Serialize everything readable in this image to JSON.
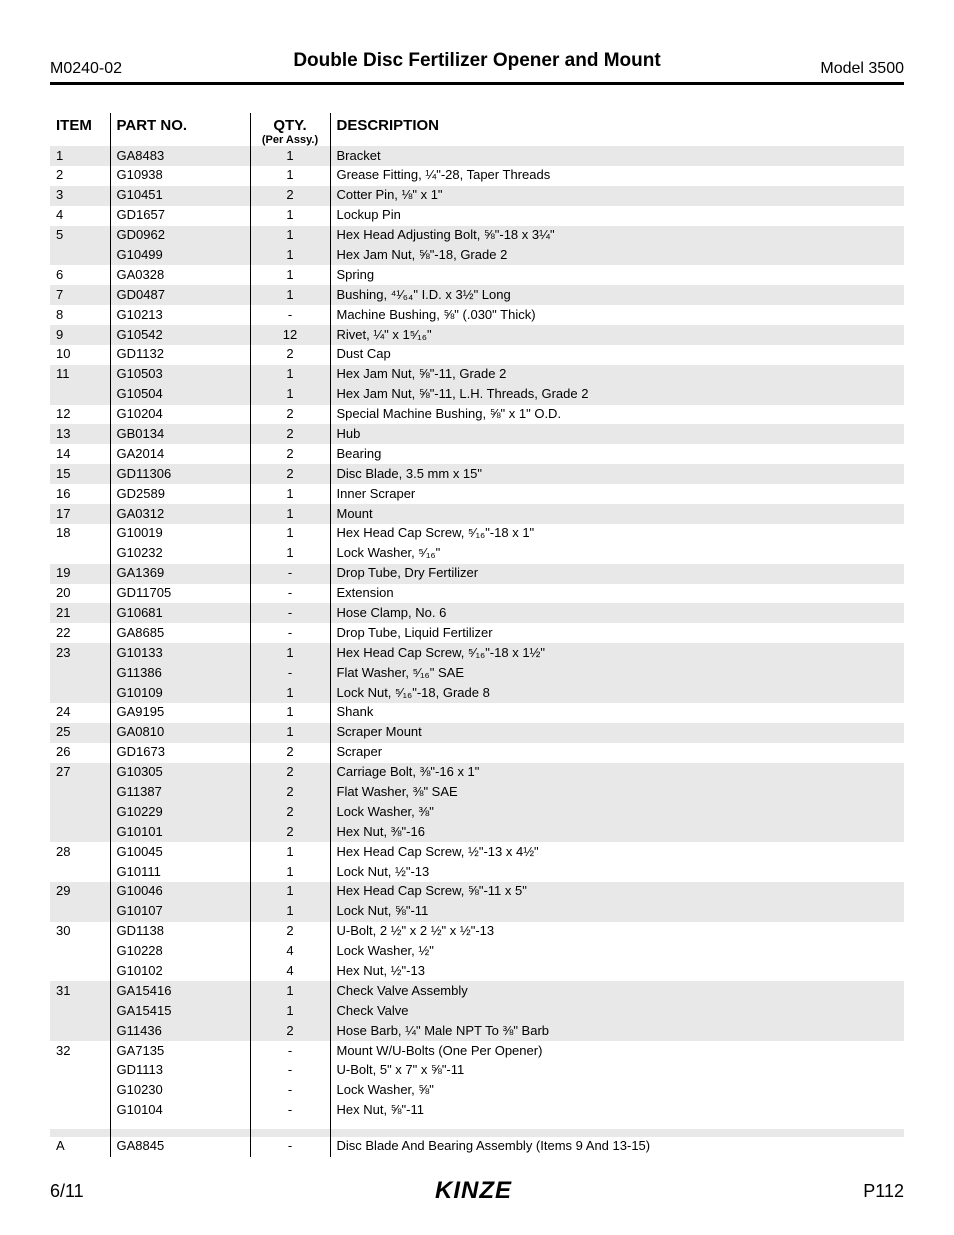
{
  "header": {
    "doc_id": "M0240-02",
    "title": "Double Disc Fertilizer Opener and Mount",
    "model": "Model 3500"
  },
  "columns": {
    "item": "ITEM",
    "part": "PART NO.",
    "qty": "QTY.",
    "qty_sub": "(Per Assy.)",
    "desc": "DESCRIPTION"
  },
  "rows": [
    {
      "item": "1",
      "striped": true,
      "lines": [
        {
          "part": "GA8483",
          "qty": "1",
          "desc": "Bracket"
        }
      ]
    },
    {
      "item": "2",
      "striped": false,
      "lines": [
        {
          "part": "G10938",
          "qty": "1",
          "desc": "Grease Fitting, ¼\"-28, Taper Threads"
        }
      ]
    },
    {
      "item": "3",
      "striped": true,
      "lines": [
        {
          "part": "G10451",
          "qty": "2",
          "desc": "Cotter Pin, ⅛\" x 1\""
        }
      ]
    },
    {
      "item": "4",
      "striped": false,
      "lines": [
        {
          "part": "GD1657",
          "qty": "1",
          "desc": "Lockup Pin"
        }
      ]
    },
    {
      "item": "5",
      "striped": true,
      "lines": [
        {
          "part": "GD0962",
          "qty": "1",
          "desc": "Hex Head Adjusting Bolt, ⅝\"-18 x 3¼\""
        },
        {
          "part": "G10499",
          "qty": "1",
          "desc": "Hex Jam Nut, ⅝\"-18, Grade 2"
        }
      ]
    },
    {
      "item": "6",
      "striped": false,
      "lines": [
        {
          "part": "GA0328",
          "qty": "1",
          "desc": "Spring"
        }
      ]
    },
    {
      "item": "7",
      "striped": true,
      "lines": [
        {
          "part": "GD0487",
          "qty": "1",
          "desc": "Bushing, ⁴¹⁄₆₄\" I.D. x 3½\" Long"
        }
      ]
    },
    {
      "item": "8",
      "striped": false,
      "lines": [
        {
          "part": "G10213",
          "qty": "-",
          "desc": "Machine Bushing, ⅝\" (.030\" Thick)"
        }
      ]
    },
    {
      "item": "9",
      "striped": true,
      "lines": [
        {
          "part": "G10542",
          "qty": "12",
          "desc": "Rivet, ¼\" x 1⁵⁄₁₆\""
        }
      ]
    },
    {
      "item": "10",
      "striped": false,
      "lines": [
        {
          "part": "GD1132",
          "qty": "2",
          "desc": "Dust Cap"
        }
      ]
    },
    {
      "item": "11",
      "striped": true,
      "lines": [
        {
          "part": "G10503",
          "qty": "1",
          "desc": "Hex Jam Nut, ⅝\"-11, Grade 2"
        },
        {
          "part": "G10504",
          "qty": "1",
          "desc": "Hex Jam Nut, ⅝\"-11, L.H. Threads, Grade 2"
        }
      ]
    },
    {
      "item": "12",
      "striped": false,
      "lines": [
        {
          "part": "G10204",
          "qty": "2",
          "desc": "Special Machine Bushing, ⅝\" x 1\" O.D."
        }
      ]
    },
    {
      "item": "13",
      "striped": true,
      "lines": [
        {
          "part": "GB0134",
          "qty": "2",
          "desc": "Hub"
        }
      ]
    },
    {
      "item": "14",
      "striped": false,
      "lines": [
        {
          "part": "GA2014",
          "qty": "2",
          "desc": "Bearing"
        }
      ]
    },
    {
      "item": "15",
      "striped": true,
      "lines": [
        {
          "part": "GD11306",
          "qty": "2",
          "desc": "Disc Blade, 3.5 mm x 15\""
        }
      ]
    },
    {
      "item": "16",
      "striped": false,
      "lines": [
        {
          "part": "GD2589",
          "qty": "1",
          "desc": "Inner Scraper"
        }
      ]
    },
    {
      "item": "17",
      "striped": true,
      "lines": [
        {
          "part": "GA0312",
          "qty": "1",
          "desc": "Mount"
        }
      ]
    },
    {
      "item": "18",
      "striped": false,
      "lines": [
        {
          "part": "G10019",
          "qty": "1",
          "desc": "Hex Head Cap Screw, ⁵⁄₁₆\"-18 x 1\""
        },
        {
          "part": "G10232",
          "qty": "1",
          "desc": "Lock Washer, ⁵⁄₁₆\""
        }
      ]
    },
    {
      "item": "19",
      "striped": true,
      "lines": [
        {
          "part": "GA1369",
          "qty": "-",
          "desc": "Drop Tube, Dry Fertilizer"
        }
      ]
    },
    {
      "item": "20",
      "striped": false,
      "lines": [
        {
          "part": "GD11705",
          "qty": "-",
          "desc": "Extension"
        }
      ]
    },
    {
      "item": "21",
      "striped": true,
      "lines": [
        {
          "part": "G10681",
          "qty": "-",
          "desc": "Hose Clamp, No. 6"
        }
      ]
    },
    {
      "item": "22",
      "striped": false,
      "lines": [
        {
          "part": "GA8685",
          "qty": "-",
          "desc": "Drop Tube, Liquid Fertilizer"
        }
      ]
    },
    {
      "item": "23",
      "striped": true,
      "lines": [
        {
          "part": "G10133",
          "qty": "1",
          "desc": "Hex Head Cap Screw, ⁵⁄₁₆\"-18 x 1½\""
        },
        {
          "part": "G11386",
          "qty": "-",
          "desc": "Flat Washer, ⁵⁄₁₆\" SAE"
        },
        {
          "part": "G10109",
          "qty": "1",
          "desc": "Lock Nut, ⁵⁄₁₆\"-18, Grade 8"
        }
      ]
    },
    {
      "item": "24",
      "striped": false,
      "lines": [
        {
          "part": "GA9195",
          "qty": "1",
          "desc": "Shank"
        }
      ]
    },
    {
      "item": "25",
      "striped": true,
      "lines": [
        {
          "part": "GA0810",
          "qty": "1",
          "desc": "Scraper Mount"
        }
      ]
    },
    {
      "item": "26",
      "striped": false,
      "lines": [
        {
          "part": "GD1673",
          "qty": "2",
          "desc": "Scraper"
        }
      ]
    },
    {
      "item": "27",
      "striped": true,
      "lines": [
        {
          "part": "G10305",
          "qty": "2",
          "desc": "Carriage Bolt, ⅜\"-16 x 1\""
        },
        {
          "part": "G11387",
          "qty": "2",
          "desc": "Flat Washer, ⅜\" SAE"
        },
        {
          "part": "G10229",
          "qty": "2",
          "desc": "Lock Washer, ⅜\""
        },
        {
          "part": "G10101",
          "qty": "2",
          "desc": "Hex Nut, ⅜\"-16"
        }
      ]
    },
    {
      "item": "28",
      "striped": false,
      "lines": [
        {
          "part": "G10045",
          "qty": "1",
          "desc": "Hex Head Cap Screw, ½\"-13 x 4½\""
        },
        {
          "part": "G10111",
          "qty": "1",
          "desc": "Lock Nut, ½\"-13"
        }
      ]
    },
    {
      "item": "29",
      "striped": true,
      "lines": [
        {
          "part": "G10046",
          "qty": "1",
          "desc": "Hex Head Cap Screw, ⅝\"-11 x 5\""
        },
        {
          "part": "G10107",
          "qty": "1",
          "desc": "Lock Nut, ⅝\"-11"
        }
      ]
    },
    {
      "item": "30",
      "striped": false,
      "lines": [
        {
          "part": "GD1138",
          "qty": "2",
          "desc": "U-Bolt, 2 ½\" x 2 ½\" x ½\"-13"
        },
        {
          "part": "G10228",
          "qty": "4",
          "desc": "Lock Washer, ½\""
        },
        {
          "part": "G10102",
          "qty": "4",
          "desc": "Hex Nut, ½\"-13"
        }
      ]
    },
    {
      "item": "31",
      "striped": true,
      "lines": [
        {
          "part": "GA15416",
          "qty": "1",
          "desc": "Check Valve Assembly"
        },
        {
          "part": "GA15415",
          "qty": "1",
          "desc": "Check Valve"
        },
        {
          "part": "G11436",
          "qty": "2",
          "desc": "Hose Barb, ¼\" Male NPT To ⅜\" Barb"
        }
      ]
    },
    {
      "item": "32",
      "striped": false,
      "lines": [
        {
          "part": "GA7135",
          "qty": "-",
          "desc": "Mount W/U-Bolts (One Per Opener)"
        },
        {
          "part": "GD1113",
          "qty": "-",
          "desc": "U-Bolt, 5\" x 7\" x ⅝\"-11"
        },
        {
          "part": "G10230",
          "qty": "-",
          "desc": "Lock Washer, ⅝\""
        },
        {
          "part": "G10104",
          "qty": "-",
          "desc": "Hex Nut, ⅝\"-11"
        }
      ]
    }
  ],
  "rows2": [
    {
      "item": "A",
      "striped": false,
      "lines": [
        {
          "part": "GA8845",
          "qty": "-",
          "desc": "Disc Blade And Bearing Assembly (Items 9 And 13-15)"
        }
      ]
    }
  ],
  "footer": {
    "date": "6/11",
    "logo": "KINZE",
    "page": "P112"
  },
  "style": {
    "stripe_color": "#e8e8e8",
    "border_color": "#000000",
    "font_family": "Arial",
    "title_fontsize": 19,
    "body_fontsize": 13
  }
}
